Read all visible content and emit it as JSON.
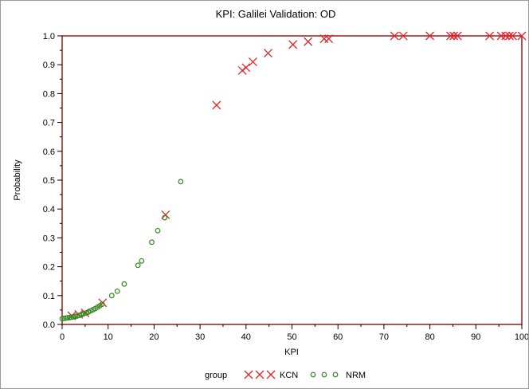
{
  "chart_data": {
    "type": "scatter",
    "title": "KPI: Galilei Validation: OD",
    "xlabel": "KPI",
    "ylabel": "Probability",
    "xlim": [
      0,
      100
    ],
    "ylim": [
      0.0,
      1.0
    ],
    "x_ticks": [
      0,
      10,
      20,
      30,
      40,
      50,
      60,
      70,
      80,
      90,
      100
    ],
    "y_ticks": [
      0.0,
      0.1,
      0.2,
      0.3,
      0.4,
      0.5,
      0.6,
      0.7,
      0.8,
      0.9,
      1.0
    ],
    "x_tick_labels": [
      "0",
      "10",
      "20",
      "30",
      "40",
      "50",
      "60",
      "70",
      "80",
      "90",
      "100"
    ],
    "y_tick_labels": [
      "0.0",
      "0.1",
      "0.2",
      "0.3",
      "0.4",
      "0.5",
      "0.6",
      "0.7",
      "0.8",
      "0.9",
      "1.0"
    ],
    "grid": false,
    "legend": {
      "title": "group",
      "position": "bottom"
    },
    "series": [
      {
        "name": "KCN",
        "marker": "x",
        "color": "#e8242a",
        "points": [
          [
            2.1,
            0.03
          ],
          [
            3.6,
            0.035
          ],
          [
            5.0,
            0.04
          ],
          [
            8.8,
            0.075
          ],
          [
            22.5,
            0.38
          ],
          [
            33.6,
            0.76
          ],
          [
            39.2,
            0.88
          ],
          [
            40.0,
            0.89
          ],
          [
            41.5,
            0.91
          ],
          [
            44.8,
            0.94
          ],
          [
            50.2,
            0.97
          ],
          [
            53.5,
            0.98
          ],
          [
            57.0,
            0.99
          ],
          [
            58.0,
            0.99
          ],
          [
            72.3,
            1.0
          ],
          [
            74.2,
            1.0
          ],
          [
            80.0,
            1.0
          ],
          [
            84.5,
            1.0
          ],
          [
            85.2,
            1.0
          ],
          [
            86.0,
            1.0
          ],
          [
            93.0,
            1.0
          ],
          [
            95.5,
            1.0
          ],
          [
            96.5,
            1.0
          ],
          [
            97.3,
            1.0
          ],
          [
            98.0,
            1.0
          ],
          [
            100.0,
            1.0
          ]
        ]
      },
      {
        "name": "NRM",
        "marker": "circle",
        "color": "#2e8a1e",
        "points": [
          [
            0.0,
            0.02
          ],
          [
            0.4,
            0.021
          ],
          [
            0.8,
            0.022
          ],
          [
            1.2,
            0.023
          ],
          [
            1.6,
            0.024
          ],
          [
            2.0,
            0.025
          ],
          [
            2.4,
            0.026
          ],
          [
            2.8,
            0.027
          ],
          [
            3.2,
            0.029
          ],
          [
            3.7,
            0.031
          ],
          [
            4.2,
            0.034
          ],
          [
            4.7,
            0.037
          ],
          [
            5.2,
            0.04
          ],
          [
            5.7,
            0.043
          ],
          [
            6.2,
            0.047
          ],
          [
            6.7,
            0.051
          ],
          [
            7.2,
            0.055
          ],
          [
            7.7,
            0.06
          ],
          [
            8.2,
            0.065
          ],
          [
            8.7,
            0.07
          ],
          [
            10.8,
            0.1
          ],
          [
            12.0,
            0.115
          ],
          [
            13.5,
            0.14
          ],
          [
            16.5,
            0.205
          ],
          [
            17.3,
            0.22
          ],
          [
            19.5,
            0.285
          ],
          [
            20.8,
            0.325
          ],
          [
            22.3,
            0.37
          ],
          [
            25.8,
            0.495
          ]
        ]
      }
    ]
  }
}
